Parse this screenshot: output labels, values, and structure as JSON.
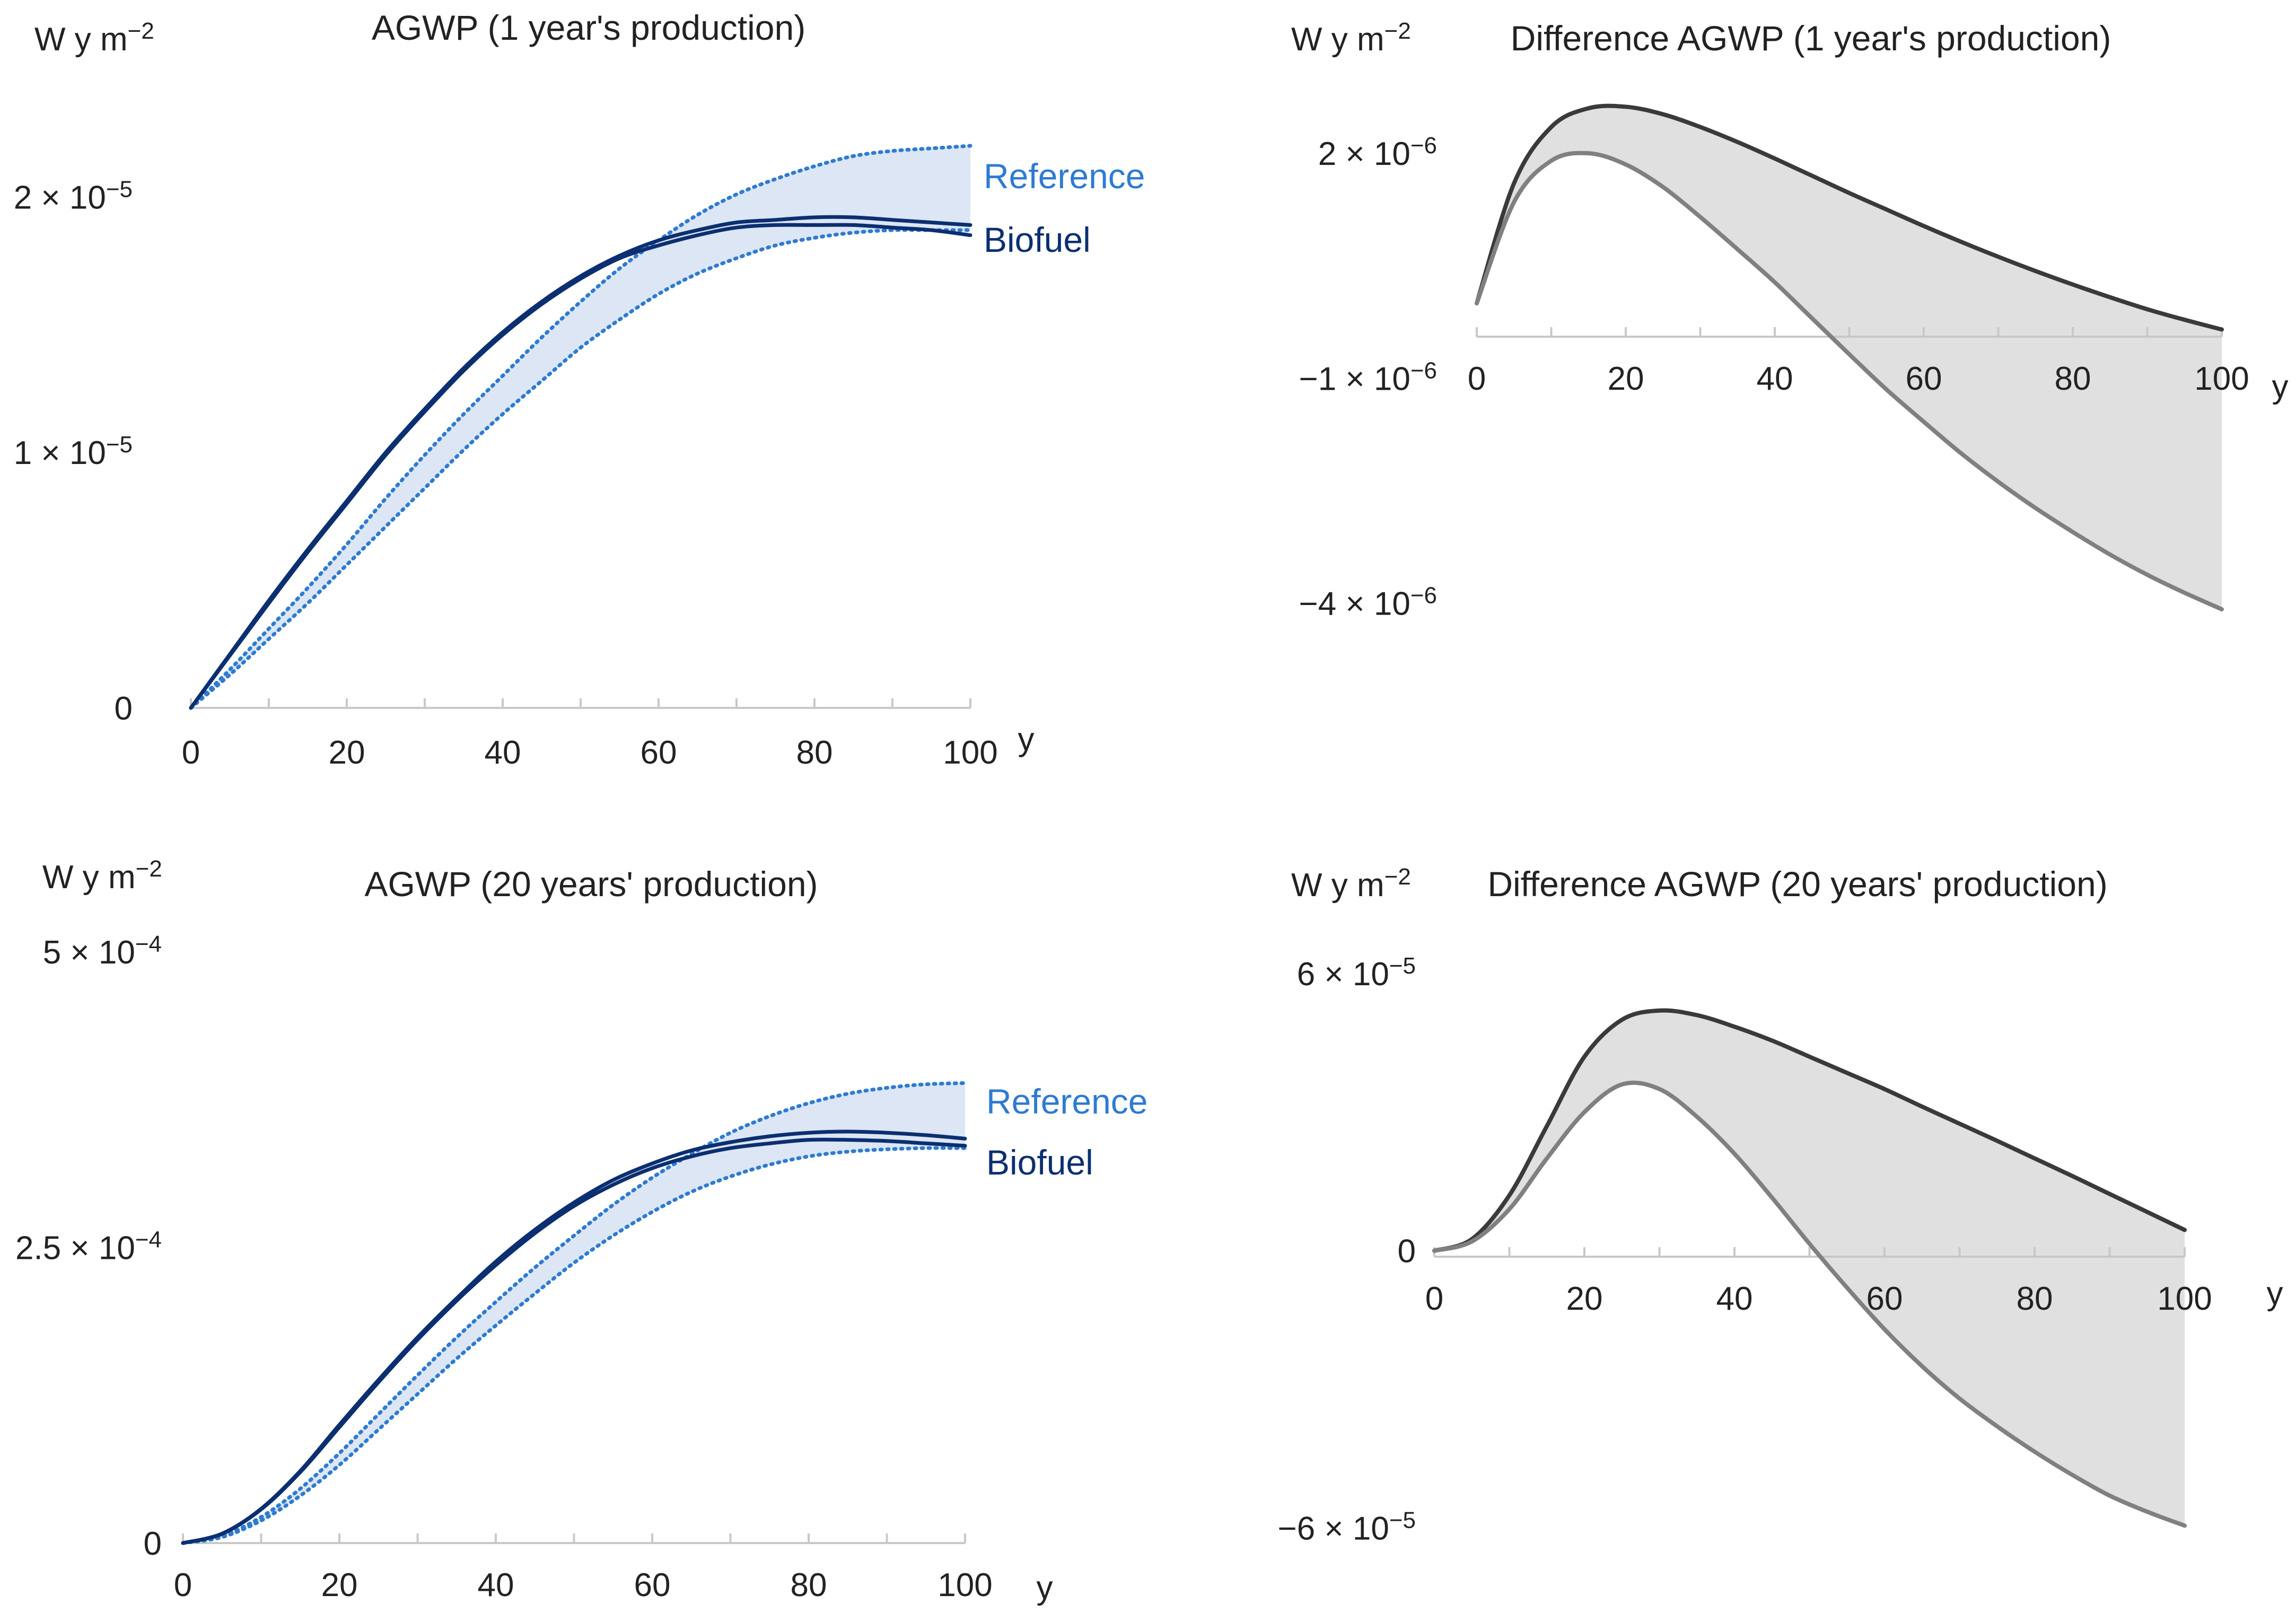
{
  "colors": {
    "reference": "#2E7BD2",
    "biofuel": "#0B2F70",
    "band_blue": "#DCE6F4",
    "band_grey": "#E0E0E0",
    "upper_grey": "#3A3A3A",
    "lower_grey": "#808080",
    "axis": "#C8C8C8",
    "text": "#222222"
  },
  "chart_data": [
    {
      "type": "line",
      "title": "AGWP (1 year's production)",
      "ylabel": "W y m",
      "ylabel_exp": "−2",
      "xlabel": "y",
      "xlim": [
        0,
        100
      ],
      "ylim": [
        0,
        2.2e-05
      ],
      "x_ticks": [
        0,
        20,
        40,
        60,
        80,
        100
      ],
      "y_ticks": [
        {
          "value": 0,
          "mantissa": "0",
          "exp": ""
        },
        {
          "value": 1e-05,
          "mantissa": "1 × 10",
          "exp": "−5"
        },
        {
          "value": 2e-05,
          "mantissa": "2 × 10",
          "exp": "−5"
        }
      ],
      "legend": [
        {
          "label": "Reference",
          "series": "reference"
        },
        {
          "label": "Biofuel",
          "series": "biofuel"
        }
      ],
      "x": [
        0,
        5,
        10,
        15,
        20,
        25,
        30,
        35,
        40,
        45,
        50,
        55,
        60,
        65,
        70,
        75,
        80,
        85,
        90,
        95,
        100
      ],
      "series": [
        {
          "name": "Reference upper",
          "group": "reference",
          "style": "dotted",
          "values": [
            0,
            1.5e-06,
            3.1e-06,
            4.7e-06,
            6.4e-06,
            8.2e-06,
            9.9e-06,
            1.15e-05,
            1.3e-05,
            1.45e-05,
            1.59e-05,
            1.72e-05,
            1.83e-05,
            1.93e-05,
            2.01e-05,
            2.07e-05,
            2.12e-05,
            2.16e-05,
            2.18e-05,
            2.19e-05,
            2.2e-05
          ]
        },
        {
          "name": "Reference lower",
          "group": "reference",
          "style": "dotted",
          "values": [
            0,
            1.3e-06,
            2.7e-06,
            4.1e-06,
            5.6e-06,
            7.1e-06,
            8.6e-06,
            1.01e-05,
            1.15e-05,
            1.28e-05,
            1.41e-05,
            1.52e-05,
            1.62e-05,
            1.7e-05,
            1.76e-05,
            1.81e-05,
            1.84e-05,
            1.86e-05,
            1.87e-05,
            1.87e-05,
            1.87e-05
          ]
        },
        {
          "name": "Biofuel upper",
          "group": "biofuel",
          "style": "solid",
          "values": [
            0,
            2.1e-06,
            4.2e-06,
            6.2e-06,
            8.1e-06,
            1e-05,
            1.17e-05,
            1.33e-05,
            1.47e-05,
            1.59e-05,
            1.69e-05,
            1.77e-05,
            1.83e-05,
            1.87e-05,
            1.9e-05,
            1.91e-05,
            1.92e-05,
            1.92e-05,
            1.91e-05,
            1.9e-05,
            1.89e-05
          ]
        },
        {
          "name": "Biofuel lower",
          "group": "biofuel",
          "style": "solid",
          "values": [
            0,
            2.05e-06,
            4.1e-06,
            6.1e-06,
            8e-06,
            9.9e-06,
            1.16e-05,
            1.32e-05,
            1.46e-05,
            1.58e-05,
            1.68e-05,
            1.76e-05,
            1.81e-05,
            1.85e-05,
            1.88e-05,
            1.89e-05,
            1.89e-05,
            1.89e-05,
            1.88e-05,
            1.87e-05,
            1.85e-05
          ]
        }
      ]
    },
    {
      "type": "area",
      "title": "Difference AGWP (1 year's production)",
      "ylabel": "W y m",
      "ylabel_exp": "−2",
      "xlabel": "y",
      "xlim": [
        0,
        100
      ],
      "ylim": [
        -4.9e-06,
        2.7e-06
      ],
      "x_ticks": [
        0,
        20,
        40,
        60,
        80,
        100
      ],
      "y_ticks": [
        {
          "value": 2e-06,
          "mantissa": "2 × 10",
          "exp": "−6"
        },
        {
          "value": -1e-06,
          "mantissa": "−1 × 10",
          "exp": "−6"
        },
        {
          "value": -4e-06,
          "mantissa": "−4 × 10",
          "exp": "−6"
        }
      ],
      "x": [
        0,
        5,
        10,
        15,
        20,
        25,
        30,
        35,
        40,
        45,
        50,
        55,
        60,
        65,
        70,
        75,
        80,
        85,
        90,
        95,
        100
      ],
      "series": [
        {
          "name": "Upper difference",
          "group": "upper",
          "style": "solid",
          "values": [
            0,
            1.6e-06,
            2.35e-06,
            2.6e-06,
            2.62e-06,
            2.52e-06,
            2.35e-06,
            2.15e-06,
            1.93e-06,
            1.7e-06,
            1.47e-06,
            1.25e-06,
            1.03e-06,
            8.2e-07,
            6.2e-07,
            4.3e-07,
            2.5e-07,
            8e-08,
            -8e-08,
            -2.2e-07,
            -3.5e-07
          ]
        },
        {
          "name": "Lower difference",
          "group": "lower",
          "style": "solid",
          "values": [
            0,
            1.35e-06,
            1.9e-06,
            2e-06,
            1.85e-06,
            1.55e-06,
            1.15e-06,
            7.2e-07,
            2.8e-07,
            -2e-07,
            -6.8e-07,
            -1.15e-06,
            -1.58e-06,
            -2e-06,
            -2.38e-06,
            -2.73e-06,
            -3.05e-06,
            -3.35e-06,
            -3.62e-06,
            -3.86e-06,
            -4.08e-06
          ]
        }
      ]
    },
    {
      "type": "line",
      "title": "AGWP (20 years' production)",
      "ylabel": "W y m",
      "ylabel_exp": "−2",
      "xlabel": "y",
      "xlim": [
        0,
        100
      ],
      "ylim": [
        0,
        0.0005
      ],
      "x_ticks": [
        0,
        20,
        40,
        60,
        80,
        100
      ],
      "y_ticks": [
        {
          "value": 0,
          "mantissa": "0",
          "exp": ""
        },
        {
          "value": 0.00025,
          "mantissa": "2.5 × 10",
          "exp": "−4"
        },
        {
          "value": 0.0005,
          "mantissa": "5 × 10",
          "exp": "−4"
        }
      ],
      "legend": [
        {
          "label": "Reference",
          "series": "reference"
        },
        {
          "label": "Biofuel",
          "series": "biofuel"
        }
      ],
      "x": [
        0,
        5,
        10,
        15,
        20,
        25,
        30,
        35,
        40,
        45,
        50,
        55,
        60,
        65,
        70,
        75,
        80,
        85,
        90,
        95,
        100
      ],
      "series": [
        {
          "name": "Reference upper",
          "group": "reference",
          "style": "dotted",
          "values": [
            0,
            6e-06,
            2.2e-05,
            4.6e-05,
            7.6e-05,
            0.000109,
            0.000142,
            0.000174,
            0.000204,
            0.000233,
            0.00026,
            0.000286,
            0.000309,
            0.000329,
            0.000347,
            0.000361,
            0.000372,
            0.00038,
            0.000385,
            0.000388,
            0.000389
          ]
        },
        {
          "name": "Reference lower",
          "group": "reference",
          "style": "dotted",
          "values": [
            0,
            5e-06,
            1.9e-05,
            4e-05,
            6.6e-05,
            9.6e-05,
            0.000126,
            0.000156,
            0.000184,
            0.000211,
            0.000237,
            0.00026,
            0.00028,
            0.000297,
            0.00031,
            0.00032,
            0.000327,
            0.000331,
            0.000333,
            0.000334,
            0.000334
          ]
        },
        {
          "name": "Biofuel upper",
          "group": "biofuel",
          "style": "solid",
          "values": [
            0,
            8e-06,
            2.9e-05,
            6.1e-05,
            0.0001,
            0.000138,
            0.000174,
            0.000207,
            0.000238,
            0.000265,
            0.000288,
            0.000307,
            0.000321,
            0.000332,
            0.000339,
            0.000344,
            0.000347,
            0.000348,
            0.000347,
            0.000345,
            0.000342
          ]
        },
        {
          "name": "Biofuel lower",
          "group": "biofuel",
          "style": "solid",
          "values": [
            0,
            7.8e-06,
            2.85e-05,
            6e-05,
            9.8e-05,
            0.000136,
            0.000172,
            0.000205,
            0.000235,
            0.000262,
            0.000285,
            0.000303,
            0.000317,
            0.000327,
            0.000334,
            0.000338,
            0.000341,
            0.000341,
            0.00034,
            0.000338,
            0.000336
          ]
        }
      ]
    },
    {
      "type": "area",
      "title": "Difference AGWP (20 years' production)",
      "ylabel": "W y m",
      "ylabel_exp": "−2",
      "xlabel": "y",
      "xlim": [
        0,
        100
      ],
      "ylim": [
        -6.5e-05,
        6.7e-05
      ],
      "x_ticks": [
        0,
        20,
        40,
        60,
        80,
        100
      ],
      "y_ticks": [
        {
          "value": 6e-05,
          "mantissa": "6 × 10",
          "exp": "−5"
        },
        {
          "value": 0,
          "mantissa": "0",
          "exp": ""
        },
        {
          "value": -6e-05,
          "mantissa": "−6 × 10",
          "exp": "−5"
        }
      ],
      "x": [
        0,
        5,
        10,
        15,
        20,
        25,
        30,
        35,
        40,
        45,
        50,
        55,
        60,
        65,
        70,
        75,
        80,
        85,
        90,
        95,
        100
      ],
      "series": [
        {
          "name": "Upper difference",
          "group": "upper",
          "style": "solid",
          "values": [
            0,
            2.5e-06,
            1.2e-05,
            2.7e-05,
            4.2e-05,
            5e-05,
            5.2e-05,
            5.1e-05,
            4.85e-05,
            4.55e-05,
            4.2e-05,
            3.85e-05,
            3.5e-05,
            3.12e-05,
            2.75e-05,
            2.38e-05,
            2e-05,
            1.62e-05,
            1.23e-05,
            8.4e-06,
            4.5e-06
          ]
        },
        {
          "name": "Lower difference",
          "group": "lower",
          "style": "solid",
          "values": [
            0,
            2e-06,
            9e-06,
            2e-05,
            3e-05,
            3.6e-05,
            3.5e-05,
            2.9e-05,
            2.1e-05,
            1.15e-05,
            1.5e-06,
            -8e-06,
            -1.7e-05,
            -2.5e-05,
            -3.2e-05,
            -3.8e-05,
            -4.35e-05,
            -4.85e-05,
            -5.3e-05,
            -5.65e-05,
            -5.95e-05
          ]
        }
      ]
    }
  ]
}
